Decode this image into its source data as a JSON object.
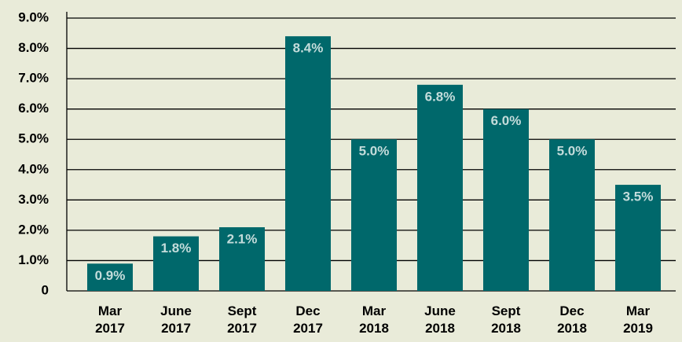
{
  "chart_data": {
    "type": "bar",
    "categories": [
      "Mar 2017",
      "June 2017",
      "Sept 2017",
      "Dec 2017",
      "Mar 2018",
      "June 2018",
      "Sept 2018",
      "Dec 2018",
      "Mar 2019"
    ],
    "values": [
      0.9,
      1.8,
      2.1,
      8.4,
      5.0,
      6.8,
      6.0,
      5.0,
      3.5
    ],
    "value_labels": [
      "0.9%",
      "1.8%",
      "2.1%",
      "8.4%",
      "5.0%",
      "6.8%",
      "6.0%",
      "5.0%",
      "3.5%"
    ],
    "color": "#00686b",
    "ylim": [
      0,
      9
    ],
    "yticks": [
      0,
      {
        "value": 1,
        "label": "1.0%"
      },
      {
        "value": 2,
        "label": "2.0%"
      },
      {
        "value": 3,
        "label": "3.0%"
      },
      {
        "value": 4,
        "label": "4.0%"
      },
      {
        "value": 5,
        "label": "5.0%"
      },
      {
        "value": 6,
        "label": "6.0%"
      },
      {
        "value": 7,
        "label": "7.0%"
      },
      {
        "value": 8,
        "label": "8.0%"
      },
      {
        "value": 9,
        "label": "9.0%"
      }
    ],
    "grid": true
  }
}
